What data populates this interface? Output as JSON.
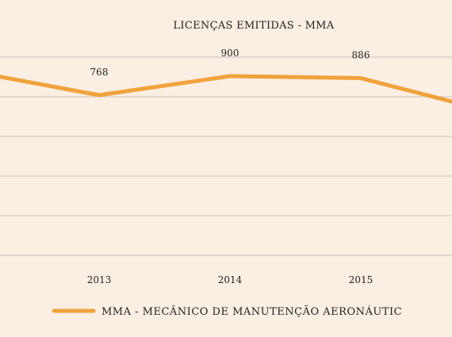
{
  "chart_data": {
    "type": "line",
    "title": "LICENÇAS EMITIDAS - MMA",
    "categories": [
      "2013",
      "2014",
      "2015"
    ],
    "series": [
      {
        "name": "MMA - MECÂNICO DE MANUTENÇÃO AERONÁUTIC",
        "color": "#f0a23c",
        "values": [
          768,
          900,
          886
        ]
      }
    ],
    "data_labels": [
      "768",
      "900",
      "886"
    ],
    "xlabel": "",
    "ylabel": "",
    "grid": true,
    "legend_position": "bottom"
  }
}
